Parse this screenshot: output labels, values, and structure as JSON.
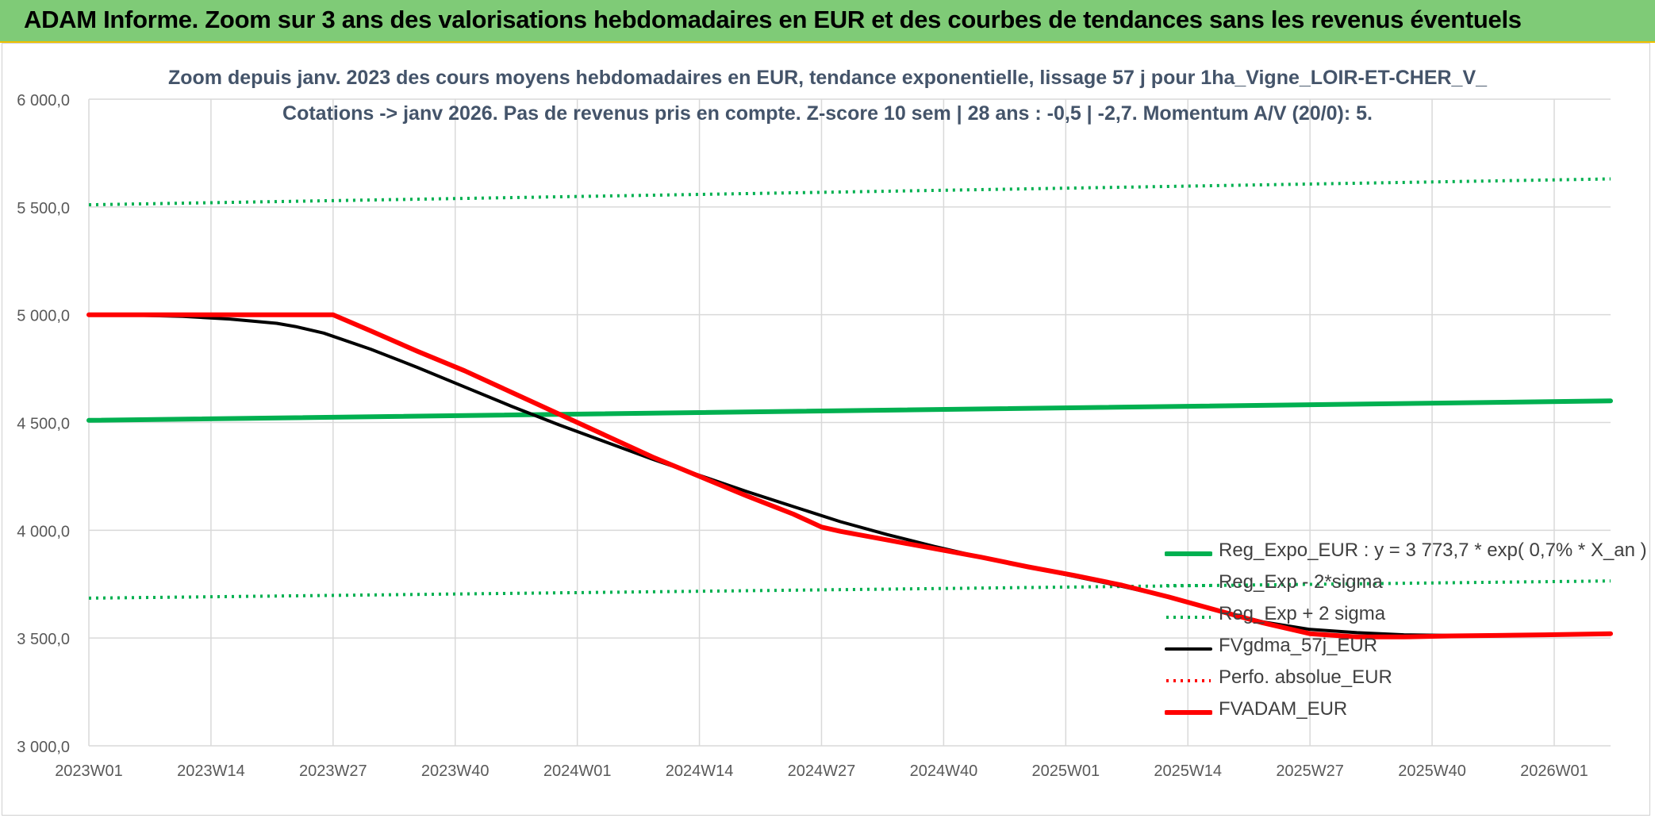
{
  "banner": {
    "title": "ADAM Informe. Zoom sur 3 ans des valorisations hebdomadaires en EUR et des courbes de tendances sans les revenus éventuels"
  },
  "chart_data": {
    "type": "line",
    "title": "Zoom depuis janv. 2023 des cours moyens hebdomadaires en EUR, tendance exponentielle, lissage 57 j pour 1ha_Vigne_LOIR-ET-CHER_V_",
    "subtitle": "Cotations -> janv 2026. Pas de revenus pris en compte. Z-score 10 sem | 28 ans : -0,5 | -2,7. Momentum A/V (20/0): 5.",
    "xlabel": "",
    "ylabel": "",
    "x_ticks": [
      "2023W01",
      "2023W14",
      "2023W27",
      "2023W40",
      "2024W01",
      "2024W14",
      "2024W27",
      "2024W40",
      "2025W01",
      "2025W14",
      "2025W27",
      "2025W40",
      "2026W01"
    ],
    "y_ticks": [
      "3 000,0",
      "3 500,0",
      "4 000,0",
      "4 500,0",
      "5 000,0",
      "5 500,0",
      "6 000,0"
    ],
    "ylim": [
      3000,
      6000
    ],
    "xlim_weeks": [
      0,
      162
    ],
    "grid": true,
    "legend_position": "bottom-right",
    "series": [
      {
        "name": "Reg_Expo_EUR : y = 3 773,7 * exp( 0,7% *  X_an )",
        "color": "#00b050",
        "style": "solid-thick",
        "x_weeks": [
          0,
          162
        ],
        "values": [
          4510,
          4600
        ]
      },
      {
        "name": "Reg_Exp - 2*sigma",
        "color": "#00b050",
        "style": "dotted",
        "x_weeks": [
          0,
          162
        ],
        "values": [
          3685,
          3765
        ]
      },
      {
        "name": "Reg_Exp + 2 sigma",
        "color": "#00b050",
        "style": "dotted",
        "x_weeks": [
          0,
          162
        ],
        "values": [
          5510,
          5630
        ]
      },
      {
        "name": "FVgdma_57j_EUR",
        "color": "#000000",
        "style": "solid",
        "x_weeks": [
          0,
          5,
          10,
          15,
          20,
          22,
          25,
          30,
          35,
          40,
          45,
          50,
          55,
          60,
          65,
          70,
          75,
          80,
          85,
          90,
          95,
          100,
          105,
          110,
          115,
          120,
          125,
          130,
          135,
          140,
          145,
          150,
          155,
          162
        ],
        "values": [
          5000,
          4998,
          4992,
          4980,
          4960,
          4945,
          4915,
          4840,
          4755,
          4665,
          4575,
          4490,
          4410,
          4330,
          4255,
          4180,
          4110,
          4040,
          3980,
          3925,
          3875,
          3830,
          3785,
          3740,
          3690,
          3630,
          3575,
          3540,
          3525,
          3515,
          3512,
          3512,
          3515,
          3520
        ]
      },
      {
        "name": "Perfo. absolue_EUR",
        "color": "#ff0000",
        "style": "dotted",
        "x_weeks": [],
        "values": []
      },
      {
        "name": "FVADAM_EUR",
        "color": "#ff0000",
        "style": "solid-thick",
        "x_weeks": [
          0,
          25,
          26,
          30,
          35,
          40,
          45,
          50,
          55,
          60,
          65,
          70,
          75,
          78,
          80,
          85,
          90,
          95,
          100,
          105,
          110,
          115,
          120,
          125,
          130,
          135,
          140,
          145,
          150,
          155,
          162
        ],
        "values": [
          5000,
          5000,
          5000,
          4925,
          4830,
          4740,
          4640,
          4540,
          4440,
          4340,
          4250,
          4160,
          4075,
          4015,
          3995,
          3955,
          3915,
          3875,
          3830,
          3790,
          3745,
          3690,
          3630,
          3570,
          3520,
          3505,
          3505,
          3510,
          3512,
          3515,
          3520
        ]
      }
    ]
  }
}
